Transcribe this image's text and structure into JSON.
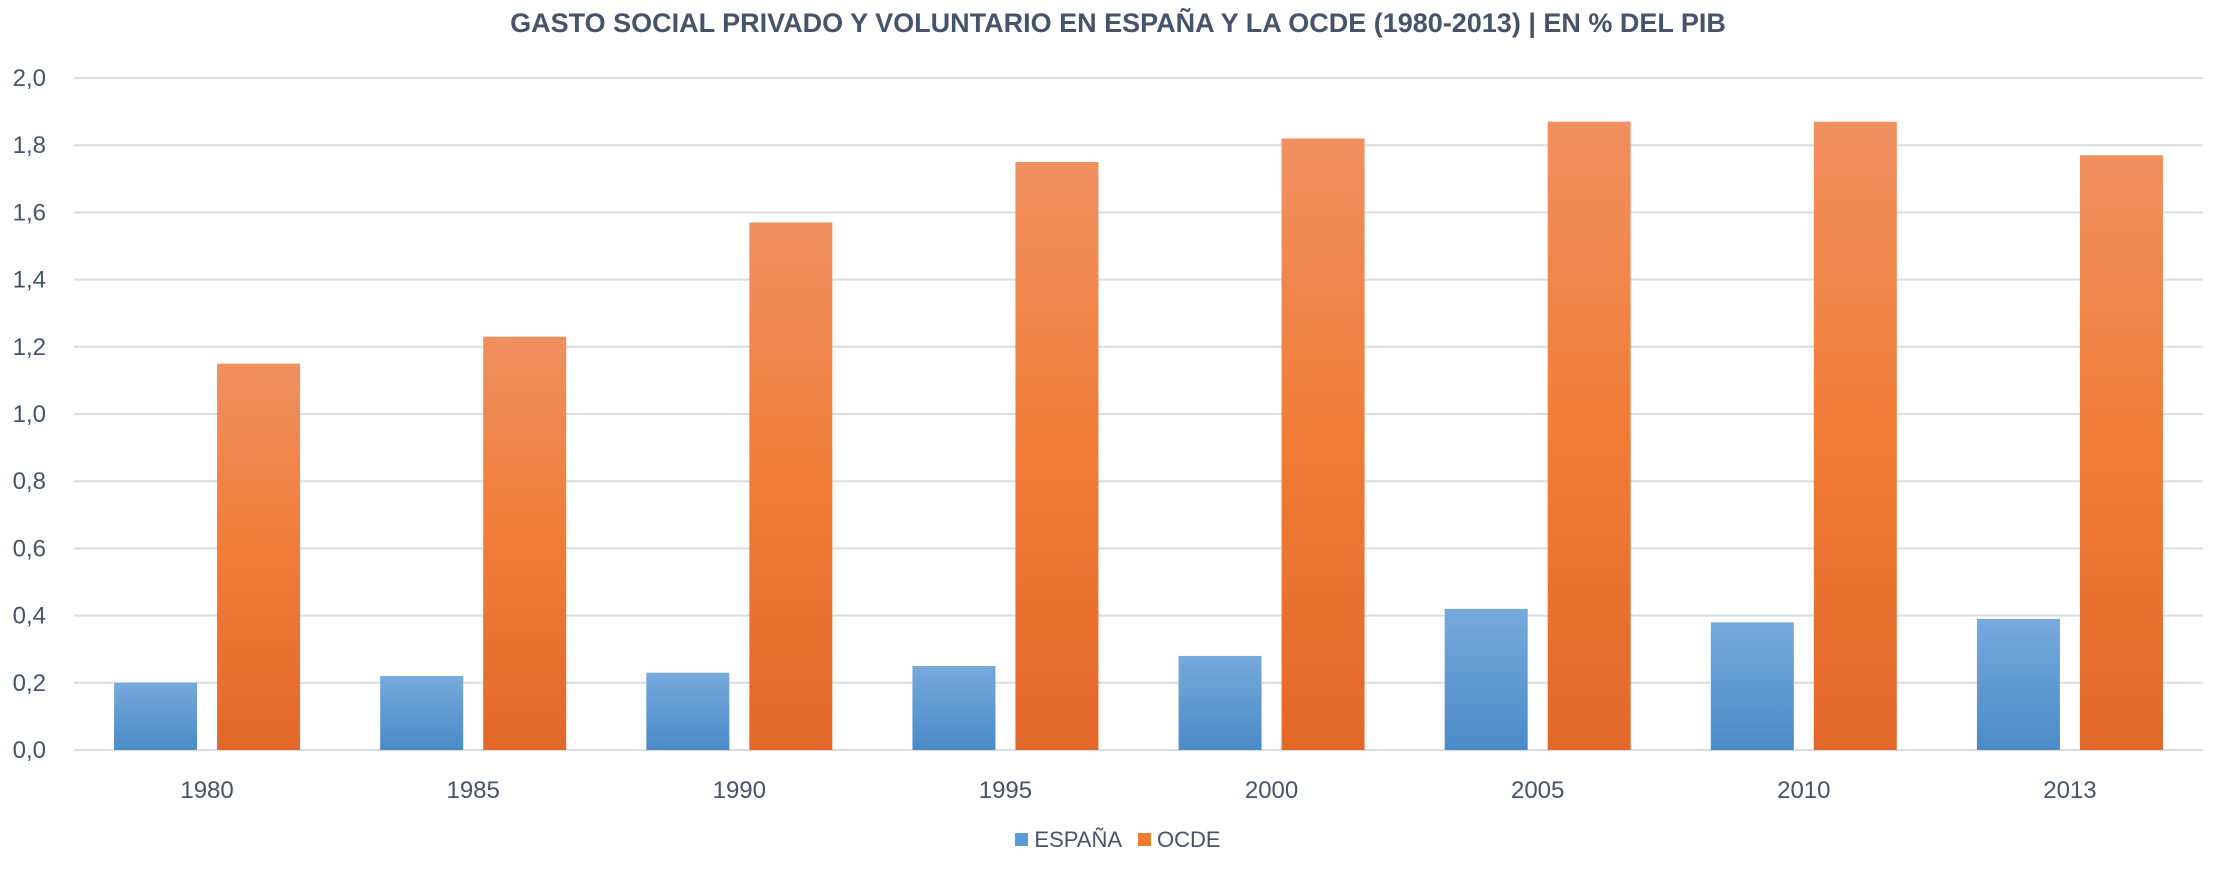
{
  "chart_data": {
    "type": "bar",
    "title": "GASTO SOCIAL PRIVADO Y VOLUNTARIO EN ESPAÑA Y LA OCDE (1980-2013) | EN % DEL PIB",
    "categories": [
      "1980",
      "1985",
      "1990",
      "1995",
      "2000",
      "2005",
      "2010",
      "2013"
    ],
    "series": [
      {
        "name": "ESPAÑA",
        "color": "#5b9bd5",
        "values": [
          0.2,
          0.22,
          0.23,
          0.25,
          0.28,
          0.42,
          0.38,
          0.39
        ]
      },
      {
        "name": "OCDE",
        "color": "#ed7d31",
        "values": [
          1.15,
          1.23,
          1.57,
          1.75,
          1.82,
          1.87,
          1.87,
          1.77
        ]
      }
    ],
    "ylim": [
      0,
      2.0
    ],
    "yticks": [
      "0,0",
      "0,2",
      "0,4",
      "0,6",
      "0,8",
      "1,0",
      "1,2",
      "1,4",
      "1,6",
      "1,8",
      "2,0"
    ],
    "grid": true,
    "legend": "bottom"
  }
}
